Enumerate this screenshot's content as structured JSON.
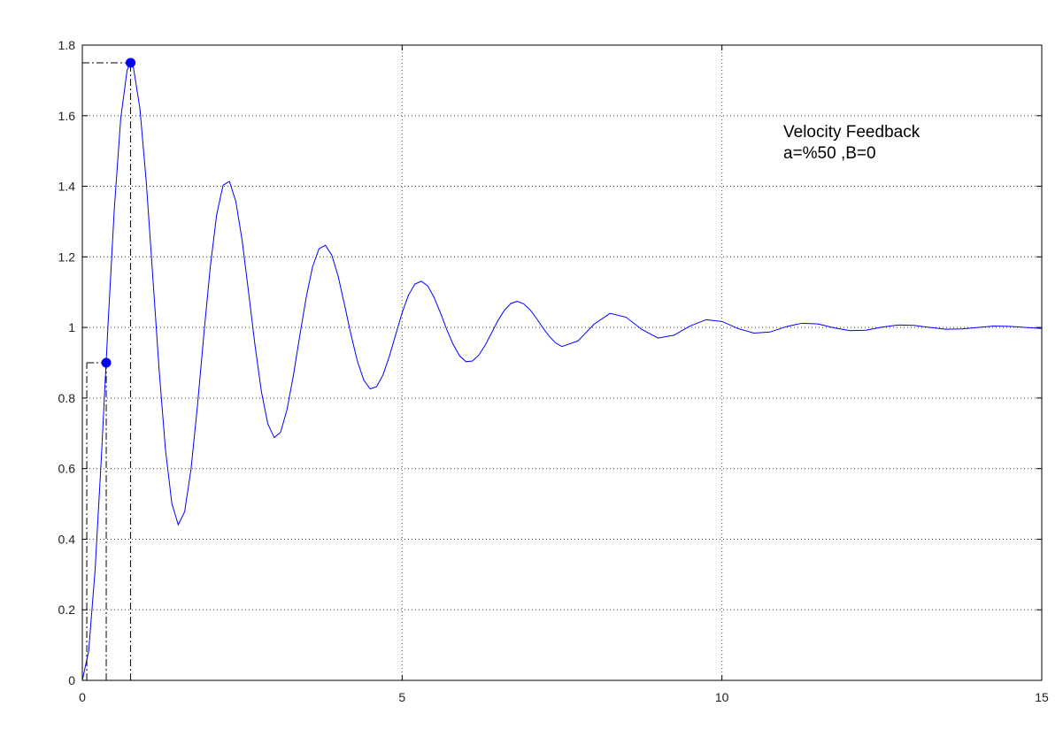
{
  "chart_data": {
    "type": "line",
    "annotation": [
      "Velocity Feedback",
      "a=%50 ,B=0"
    ],
    "x": [
      0,
      0.1,
      0.2,
      0.3,
      0.4,
      0.5,
      0.6,
      0.7,
      0.75,
      0.8,
      0.9,
      1.0,
      1.1,
      1.2,
      1.3,
      1.4,
      1.5,
      1.6,
      1.7,
      1.8,
      1.9,
      2.0,
      2.1,
      2.2,
      2.3,
      2.4,
      2.5,
      2.6,
      2.7,
      2.8,
      2.9,
      3.0,
      3.1,
      3.2,
      3.3,
      3.4,
      3.5,
      3.6,
      3.7,
      3.8,
      3.9,
      4.0,
      4.1,
      4.2,
      4.3,
      4.4,
      4.5,
      4.6,
      4.7,
      4.8,
      4.9,
      5.0,
      5.1,
      5.2,
      5.3,
      5.4,
      5.5,
      5.6,
      5.7,
      5.8,
      5.9,
      6.0,
      6.1,
      6.2,
      6.3,
      6.4,
      6.5,
      6.6,
      6.7,
      6.8,
      6.9,
      7.0,
      7.1,
      7.2,
      7.3,
      7.4,
      7.5,
      7.75,
      8.0,
      8.25,
      8.5,
      8.75,
      9.0,
      9.25,
      9.5,
      9.75,
      10.0,
      10.25,
      10.5,
      10.75,
      11.0,
      11.25,
      11.5,
      11.75,
      12.0,
      12.25,
      12.5,
      12.75,
      13.0,
      13.25,
      13.5,
      13.75,
      14.0,
      14.25,
      14.5,
      14.75,
      15.0
    ],
    "series": [
      {
        "color": "#0000ff",
        "values": [
          0,
          0.084,
          0.313,
          0.639,
          1.001,
          1.335,
          1.591,
          1.729,
          1.748,
          1.736,
          1.621,
          1.412,
          1.149,
          0.882,
          0.654,
          0.501,
          0.441,
          0.478,
          0.599,
          0.778,
          0.98,
          1.17,
          1.319,
          1.403,
          1.414,
          1.357,
          1.245,
          1.099,
          0.949,
          0.818,
          0.727,
          0.688,
          0.703,
          0.767,
          0.864,
          0.977,
          1.085,
          1.172,
          1.223,
          1.233,
          1.205,
          1.145,
          1.064,
          0.98,
          0.905,
          0.851,
          0.826,
          0.832,
          0.865,
          0.918,
          0.98,
          1.042,
          1.092,
          1.123,
          1.131,
          1.118,
          1.085,
          1.041,
          0.993,
          0.951,
          0.919,
          0.903,
          0.905,
          0.922,
          0.95,
          0.985,
          1.02,
          1.049,
          1.068,
          1.074,
          1.067,
          1.05,
          1.026,
          0.999,
          0.975,
          0.956,
          0.946,
          0.962,
          1.009,
          1.04,
          1.029,
          0.994,
          0.97,
          0.978,
          1.004,
          1.022,
          1.017,
          0.997,
          0.984,
          0.987,
          1.002,
          1.012,
          1.01,
          0.999,
          0.991,
          0.992,
          1.001,
          1.007,
          1.006,
          1.0,
          0.995,
          0.996,
          1.0,
          1.004,
          1.003,
          1.0,
          0.997
        ]
      }
    ],
    "markers": {
      "color": "#0000ff",
      "x": [
        0.374,
        0.755
      ],
      "y": [
        0.9,
        1.75
      ]
    },
    "rise_start_x": 0.07,
    "xlim": [
      0,
      15
    ],
    "xticks": [
      0,
      5,
      10,
      15
    ],
    "ylim": [
      0,
      1.8
    ],
    "yticks": [
      0,
      0.2,
      0.4,
      0.6,
      0.8,
      1,
      1.2,
      1.4,
      1.6,
      1.8
    ],
    "grid": true
  }
}
